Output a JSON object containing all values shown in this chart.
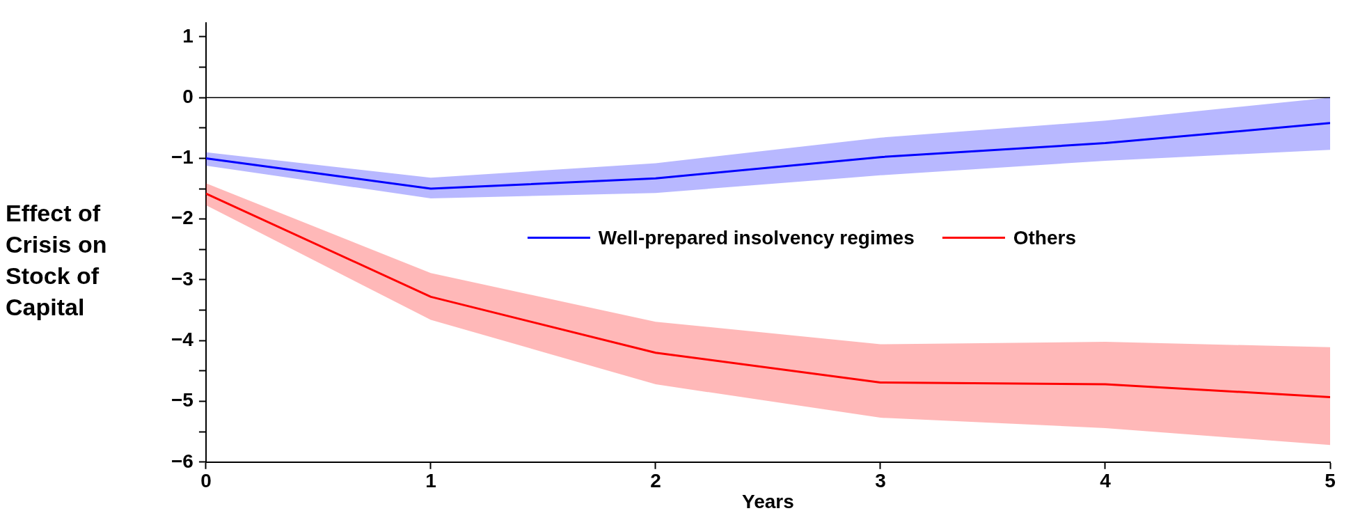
{
  "chart_data": {
    "type": "line",
    "xlabel": "Years",
    "ylabel": "Effect of Crisis on Stock of Capital",
    "x": [
      0,
      1,
      2,
      3,
      4,
      5
    ],
    "xlim": [
      0,
      5
    ],
    "xticks": [
      0,
      1,
      2,
      3,
      4,
      5
    ],
    "ylim": [
      -6,
      1.23
    ],
    "yticks": [
      -6,
      {
        "value": -5.5,
        "label": null
      },
      -5,
      {
        "value": -4.5,
        "label": null
      },
      -4,
      {
        "value": -3.5,
        "label": null
      },
      -3,
      {
        "value": -2.5,
        "label": null
      },
      -2,
      {
        "value": -1.5,
        "label": null
      },
      -1,
      {
        "value": -0.5,
        "label": null
      },
      0,
      {
        "value": 0.5,
        "label": null
      },
      1
    ],
    "grid": false,
    "legend": "center",
    "line_style": "solid",
    "marker": "none",
    "ref_lines": [
      {
        "axis": "y",
        "value": 0,
        "color": "#000000"
      }
    ],
    "series": [
      {
        "name": "Well-prepared insolvency regimes",
        "color": "#0000ff",
        "values": [
          -1.0,
          -1.5,
          -1.33,
          -0.98,
          -0.75,
          -0.42
        ],
        "lower": [
          -1.12,
          -1.66,
          -1.57,
          -1.28,
          -1.04,
          -0.86
        ],
        "upper": [
          -0.9,
          -1.32,
          -1.08,
          -0.66,
          -0.38,
          0
        ]
      },
      {
        "name": "Others",
        "color": "#ff0000",
        "values": [
          -1.58,
          -3.28,
          -4.2,
          -4.69,
          -4.72,
          -4.93
        ],
        "lower": [
          -1.77,
          -3.66,
          -4.72,
          -5.27,
          -5.44,
          -5.72
        ],
        "upper": [
          -1.41,
          -2.89,
          -3.69,
          -4.06,
          -4.02,
          -4.11
        ]
      }
    ]
  }
}
